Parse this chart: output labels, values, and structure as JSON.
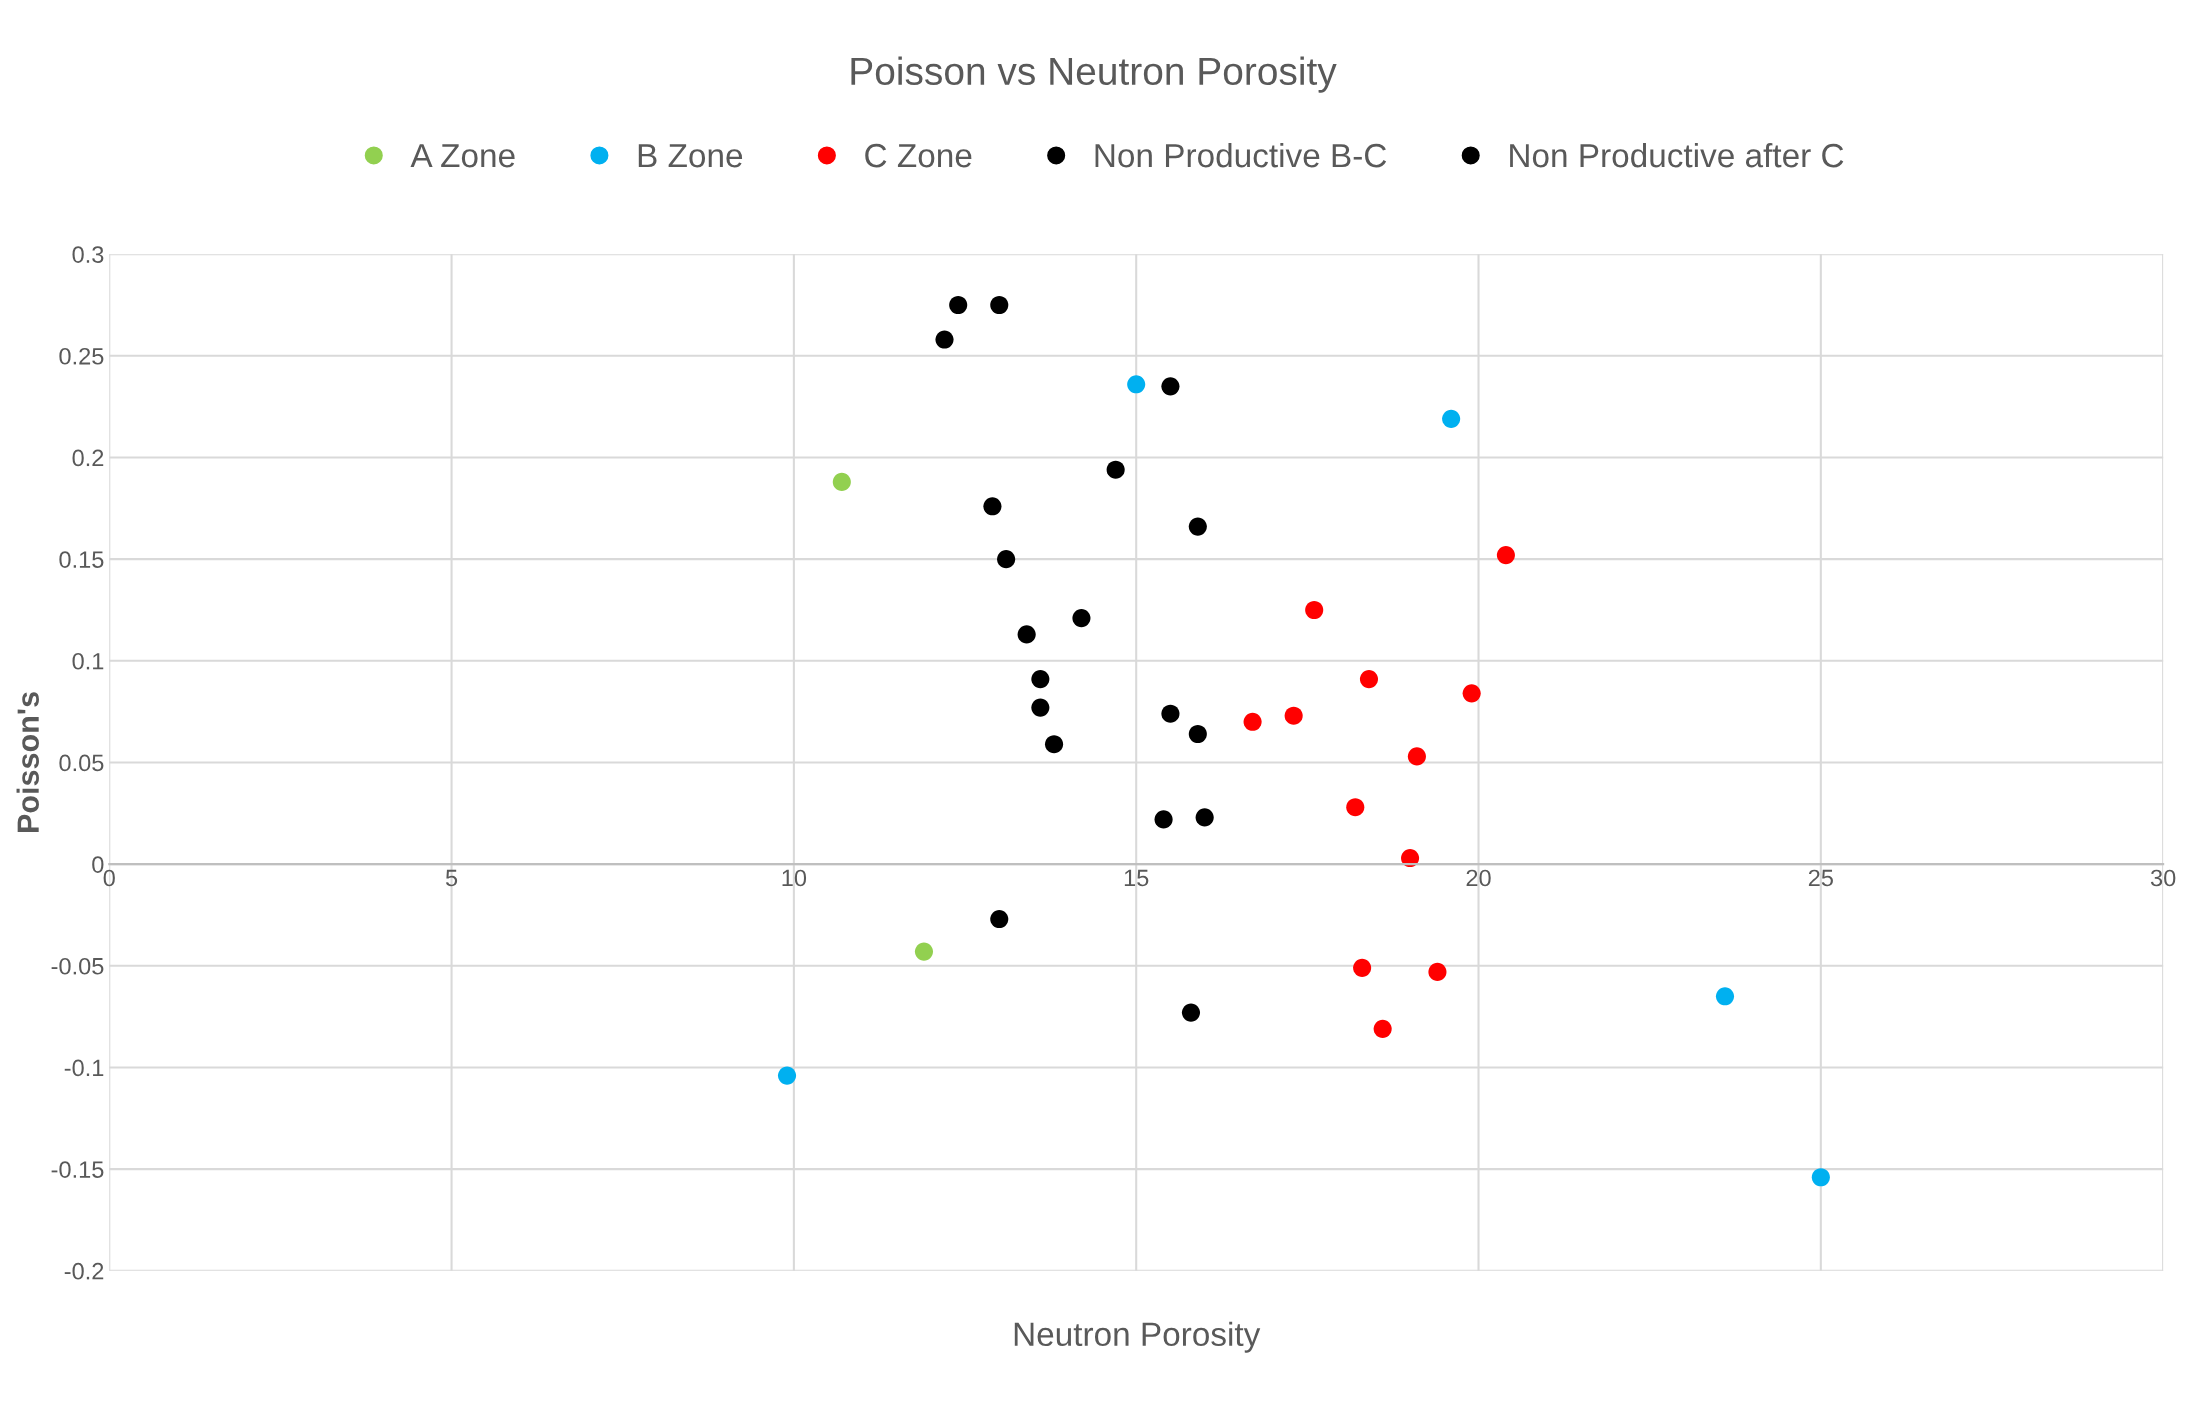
{
  "chart_data": {
    "type": "scatter",
    "title": "Poisson vs Neutron Porosity",
    "xlabel": "Neutron Porosity",
    "ylabel": "Poisson's",
    "xlim": [
      0,
      30
    ],
    "xticks": [
      0,
      5,
      10,
      15,
      20,
      25,
      30
    ],
    "ylim": [
      -0.2,
      0.3
    ],
    "yticks": [
      -0.2,
      -0.15,
      -0.1,
      -0.05,
      0,
      0.05,
      0.1,
      0.15,
      0.2,
      0.25,
      0.3
    ],
    "grid": true,
    "legend": "top",
    "marker": "circle",
    "series": [
      {
        "name": "A Zone",
        "color": "#92d050",
        "x": [
          10.7,
          11.9
        ],
        "values": [
          0.188,
          -0.043
        ]
      },
      {
        "name": "B Zone",
        "color": "#00b0f0",
        "x": [
          15.0,
          19.6,
          9.9,
          23.6,
          25.0
        ],
        "values": [
          0.236,
          0.219,
          -0.104,
          -0.065,
          -0.154
        ]
      },
      {
        "name": "C Zone",
        "color": "#ff0000",
        "x": [
          20.4,
          17.6,
          18.4,
          19.9,
          16.7,
          17.3,
          19.1,
          18.2,
          19.0,
          18.3,
          19.4,
          18.6
        ],
        "values": [
          0.152,
          0.125,
          0.091,
          0.084,
          0.07,
          0.073,
          0.053,
          0.028,
          0.003,
          -0.051,
          -0.053,
          -0.081
        ]
      },
      {
        "name": "Non Productive B-C",
        "color": "#000000",
        "x": [
          12.4,
          13.0,
          12.2,
          15.5,
          14.7,
          12.9,
          15.9,
          13.1,
          14.2,
          13.4
        ],
        "values": [
          0.275,
          0.275,
          0.258,
          0.235,
          0.194,
          0.176,
          0.166,
          0.15,
          0.121,
          0.113
        ]
      },
      {
        "name": "Non Productive after C",
        "color": "#000000",
        "x": [
          13.6,
          13.6,
          15.5,
          15.9,
          13.8,
          15.4,
          16.0,
          13.0,
          15.8
        ],
        "values": [
          0.091,
          0.077,
          0.074,
          0.064,
          0.059,
          0.022,
          0.023,
          -0.027,
          -0.073
        ]
      }
    ]
  }
}
